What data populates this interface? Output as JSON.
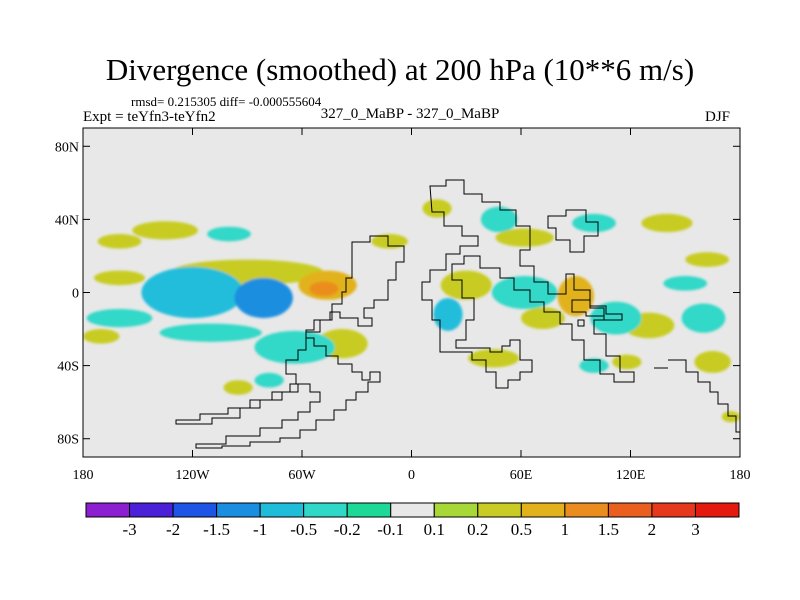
{
  "chart_data": {
    "type": "heatmap",
    "title": "Divergence (smoothed) at 200 hPa (10**6 m/s)",
    "stats_text": "rmsd= 0.215305 diff= -0.000555604",
    "experiment_text": "Expt = teYfn3-teYfn2",
    "runs_text": "327_0_MaBP - 327_0_MaBP",
    "season": "DJF",
    "units": "10**6 m/s",
    "x_range": [
      -180,
      180
    ],
    "y_range": [
      -90,
      90
    ],
    "x_ticks": [
      {
        "value": -180,
        "label": "180"
      },
      {
        "value": -120,
        "label": "120W"
      },
      {
        "value": -60,
        "label": "60W"
      },
      {
        "value": 0,
        "label": "0"
      },
      {
        "value": 60,
        "label": "60E"
      },
      {
        "value": 120,
        "label": "120E"
      },
      {
        "value": 180,
        "label": "180"
      }
    ],
    "y_ticks": [
      {
        "value": 80,
        "label": "80N"
      },
      {
        "value": 40,
        "label": "40N"
      },
      {
        "value": 0,
        "label": "0"
      },
      {
        "value": -40,
        "label": "40S"
      },
      {
        "value": -80,
        "label": "80S"
      }
    ],
    "colorbar": {
      "labels": [
        "-3",
        "-2",
        "-1.5",
        "-1",
        "-0.5",
        "-0.2",
        "-0.1",
        "0.1",
        "0.2",
        "0.5",
        "1",
        "1.5",
        "2",
        "3"
      ],
      "colors": [
        "#8c20d0",
        "#4a20d8",
        "#1f55e6",
        "#1a8ee0",
        "#20bddb",
        "#30d8c8",
        "#1ed898",
        "#e8e8e8",
        "#a8d838",
        "#c8cc24",
        "#e2b21c",
        "#eb8d1e",
        "#ea5f1d",
        "#e6381c",
        "#e41a0f"
      ]
    },
    "fields": [
      {
        "lon": -120,
        "lat": 0,
        "rx": 28,
        "ry": 14,
        "value": -0.6
      },
      {
        "lon": -81,
        "lat": -3,
        "rx": 16,
        "ry": 11,
        "value": -1.2
      },
      {
        "lon": -90,
        "lat": 11,
        "rx": 42,
        "ry": 7,
        "value": 0.4
      },
      {
        "lon": -46,
        "lat": 4,
        "rx": 16,
        "ry": 8,
        "value": 0.8
      },
      {
        "lon": -48,
        "lat": 2,
        "rx": 8,
        "ry": 4,
        "value": 1.4
      },
      {
        "lon": -110,
        "lat": -22,
        "rx": 28,
        "ry": 5,
        "value": -0.3
      },
      {
        "lon": -64,
        "lat": -30,
        "rx": 22,
        "ry": 9,
        "value": -0.35
      },
      {
        "lon": -38,
        "lat": -28,
        "rx": 14,
        "ry": 8,
        "value": 0.25
      },
      {
        "lon": -160,
        "lat": 28,
        "rx": 12,
        "ry": 4,
        "value": 0.3
      },
      {
        "lon": -135,
        "lat": 34,
        "rx": 18,
        "ry": 5,
        "value": 0.3
      },
      {
        "lon": -100,
        "lat": 32,
        "rx": 12,
        "ry": 4,
        "value": -0.25
      },
      {
        "lon": -160,
        "lat": 8,
        "rx": 14,
        "ry": 4,
        "value": 0.3
      },
      {
        "lon": -160,
        "lat": -14,
        "rx": 18,
        "ry": 5,
        "value": -0.3
      },
      {
        "lon": -170,
        "lat": -24,
        "rx": 10,
        "ry": 4,
        "value": 0.25
      },
      {
        "lon": -95,
        "lat": -52,
        "rx": 8,
        "ry": 4,
        "value": 0.3
      },
      {
        "lon": -78,
        "lat": -48,
        "rx": 8,
        "ry": 4,
        "value": -0.3
      },
      {
        "lon": -12,
        "lat": 28,
        "rx": 10,
        "ry": 4,
        "value": 0.25
      },
      {
        "lon": 14,
        "lat": 46,
        "rx": 8,
        "ry": 5,
        "value": 0.3
      },
      {
        "lon": 48,
        "lat": 40,
        "rx": 10,
        "ry": 7,
        "value": -0.3
      },
      {
        "lon": 62,
        "lat": 30,
        "rx": 16,
        "ry": 5,
        "value": 0.35
      },
      {
        "lon": 100,
        "lat": 38,
        "rx": 12,
        "ry": 5,
        "value": -0.3
      },
      {
        "lon": 140,
        "lat": 38,
        "rx": 14,
        "ry": 5,
        "value": 0.3
      },
      {
        "lon": 162,
        "lat": 18,
        "rx": 12,
        "ry": 4,
        "value": 0.3
      },
      {
        "lon": 150,
        "lat": 5,
        "rx": 12,
        "ry": 4,
        "value": -0.25
      },
      {
        "lon": 20,
        "lat": -12,
        "rx": 8,
        "ry": 9,
        "value": -0.7
      },
      {
        "lon": 30,
        "lat": 4,
        "rx": 14,
        "ry": 8,
        "value": 0.4
      },
      {
        "lon": 62,
        "lat": 0,
        "rx": 18,
        "ry": 9,
        "value": -0.4
      },
      {
        "lon": 72,
        "lat": -14,
        "rx": 12,
        "ry": 6,
        "value": 0.35
      },
      {
        "lon": 90,
        "lat": -2,
        "rx": 10,
        "ry": 11,
        "value": 0.9
      },
      {
        "lon": 112,
        "lat": -14,
        "rx": 14,
        "ry": 9,
        "value": -0.5
      },
      {
        "lon": 130,
        "lat": -18,
        "rx": 14,
        "ry": 7,
        "value": 0.35
      },
      {
        "lon": 160,
        "lat": -14,
        "rx": 12,
        "ry": 8,
        "value": -0.45
      },
      {
        "lon": 165,
        "lat": -38,
        "rx": 10,
        "ry": 6,
        "value": 0.3
      },
      {
        "lon": 45,
        "lat": -36,
        "rx": 14,
        "ry": 5,
        "value": 0.25
      },
      {
        "lon": 100,
        "lat": -40,
        "rx": 8,
        "ry": 4,
        "value": -0.25
      },
      {
        "lon": 118,
        "lat": -38,
        "rx": 8,
        "ry": 4,
        "value": 0.3
      },
      {
        "lon": 175,
        "lat": -68,
        "rx": 5,
        "ry": 3,
        "value": 0.3
      }
    ]
  }
}
